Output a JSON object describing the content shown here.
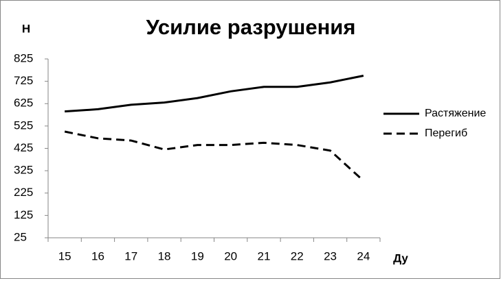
{
  "chart_data": {
    "type": "line",
    "title": "Усилие разрушения",
    "y_label": "Н",
    "x_label": "Ду",
    "categories": [
      "15",
      "16",
      "17",
      "18",
      "19",
      "20",
      "21",
      "22",
      "23",
      "24"
    ],
    "series": [
      {
        "name": "Растяжение",
        "color": "#000000",
        "style": "solid",
        "values": [
          590,
          600,
          620,
          630,
          650,
          680,
          700,
          700,
          720,
          750
        ]
      },
      {
        "name": "Перегиб",
        "color": "#000000",
        "style": "dashed",
        "values": [
          500,
          470,
          460,
          420,
          440,
          440,
          450,
          440,
          415,
          280
        ]
      }
    ],
    "ylim": [
      25,
      825
    ],
    "yticks": [
      25,
      125,
      225,
      325,
      425,
      525,
      625,
      725,
      825
    ],
    "grid": false,
    "legend": "right"
  }
}
